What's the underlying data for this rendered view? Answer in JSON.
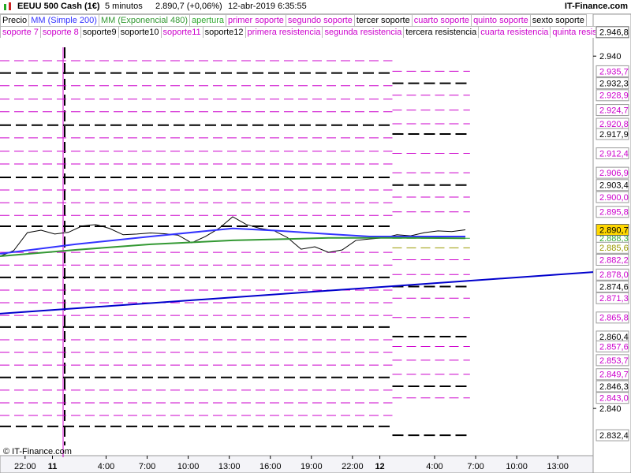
{
  "header": {
    "title": "EEUU 500 Cash (1€)",
    "interval": "5 minutos",
    "quote": "2.890,7 (+0,06%)",
    "datetime": "12-abr-2019 6:35:55",
    "brand": "IT-Finance.com"
  },
  "footer": {
    "copyright": "© IT-Finance.com"
  },
  "chart_data": {
    "type": "price-levels",
    "xlim": [
      0,
      520
    ],
    "xticks": [
      {
        "value": 22,
        "label": "22:00"
      },
      {
        "value": 46,
        "label": "11",
        "bold": true
      },
      {
        "value": 93,
        "label": "4:00"
      },
      {
        "value": 129,
        "label": "7:00"
      },
      {
        "value": 165,
        "label": "10:00"
      },
      {
        "value": 201,
        "label": "13:00"
      },
      {
        "value": 237,
        "label": "16:00"
      },
      {
        "value": 273,
        "label": "19:00"
      },
      {
        "value": 309,
        "label": "22:00"
      },
      {
        "value": 333,
        "label": "12",
        "bold": true
      },
      {
        "value": 381,
        "label": "4:00"
      },
      {
        "value": 417,
        "label": "7:00"
      },
      {
        "value": 453,
        "label": "10:00"
      },
      {
        "value": 489,
        "label": "13:00"
      }
    ],
    "ylim": [
      2826.6,
      2948.1
    ],
    "yticks": [
      {
        "value": 2940,
        "label": "2.940"
      },
      {
        "value": 2840,
        "label": "2.840"
      }
    ],
    "series": [
      {
        "name": "Precio",
        "color": "#000000",
        "x": [
          0,
          12,
          24,
          36,
          48,
          60,
          72,
          84,
          96,
          108,
          120,
          132,
          144,
          156,
          168,
          180,
          192,
          204,
          216,
          228,
          240,
          252,
          264,
          276,
          288,
          300,
          312,
          324,
          336,
          348,
          360,
          372,
          384,
          396,
          408
        ],
        "values": [
          2883.2,
          2884.8,
          2889.9,
          2890.6,
          2889.5,
          2890.0,
          2891.8,
          2892.2,
          2891.1,
          2889.3,
          2889.5,
          2889.8,
          2889.6,
          2889.2,
          2887.0,
          2888.8,
          2891.1,
          2894.4,
          2892.2,
          2891.1,
          2890.5,
          2888.5,
          2885.2,
          2885.9,
          2884.3,
          2885.0,
          2887.7,
          2888.1,
          2888.4,
          2889.3,
          2889.0,
          2889.9,
          2890.4,
          2890.2,
          2890.7
        ]
      },
      {
        "name": "MM (Simple 200)",
        "color": "#3333ff",
        "x": [
          0,
          66,
          132,
          204,
          240,
          288,
          324,
          360,
          408
        ],
        "values": [
          2883.9,
          2886.6,
          2888.8,
          2891.1,
          2890.5,
          2889.5,
          2888.8,
          2888.8,
          2888.8
        ]
      },
      {
        "name": "MM (Exponencial 480)",
        "color": "#339933",
        "x": [
          0,
          66,
          132,
          204,
          240,
          288,
          324,
          360,
          408
        ],
        "values": [
          2883.2,
          2885.0,
          2886.6,
          2887.7,
          2888.0,
          2888.4,
          2888.4,
          2888.4,
          2888.3
        ]
      }
    ],
    "legend_items": [
      {
        "name": "apertura",
        "color": "#33aa33"
      },
      {
        "name": "primer soporte",
        "color": "#cc00cc"
      },
      {
        "name": "segundo soporte",
        "color": "#cc00cc"
      },
      {
        "name": "tercer soporte",
        "color": "#000000"
      },
      {
        "name": "cuarto soporte",
        "color": "#cc00cc"
      },
      {
        "name": "quinto soporte",
        "color": "#cc00cc"
      },
      {
        "name": "sexto soporte",
        "color": "#000000"
      },
      {
        "name": "soporte 7",
        "color": "#cc00cc"
      },
      {
        "name": "soporte 8",
        "color": "#cc00cc"
      },
      {
        "name": "soporte9",
        "color": "#000000"
      },
      {
        "name": "soporte10",
        "color": "#000000"
      },
      {
        "name": "soporte11",
        "color": "#cc00cc"
      },
      {
        "name": "soporte12",
        "color": "#000000"
      },
      {
        "name": "primera resistencia",
        "color": "#cc00cc"
      },
      {
        "name": "segunda resistencia",
        "color": "#cc00cc"
      },
      {
        "name": "tercera resistencia",
        "color": "#000000"
      },
      {
        "name": "cuarta resistencia",
        "color": "#cc00cc"
      },
      {
        "name": "quinta resistencia",
        "color": "#cc00cc"
      }
    ],
    "previous_session": {
      "xrange": [
        0,
        344
      ],
      "major_levels": [
        2935.2,
        2920.4,
        2905.6,
        2891.7,
        2877.2,
        2863.1,
        2848.8,
        2834.9
      ],
      "minor_levels": [
        2938.7,
        2931.6,
        2927.8,
        2924.2,
        2916.8,
        2913.0,
        2909.4,
        2902.0,
        2898.4,
        2894.8,
        2884.3,
        2880.7,
        2873.6,
        2870.0,
        2866.4,
        2859.5,
        2855.9,
        2852.3,
        2845.2,
        2841.6,
        2838.0
      ]
    },
    "current_session_xrange": [
      344,
      412
    ],
    "levels": [
      {
        "value": 2935.7,
        "label": "2.935,7",
        "color": "#cc00cc"
      },
      {
        "value": 2932.3,
        "label": "2.932,3",
        "color": "#000000"
      },
      {
        "value": 2928.9,
        "label": "2.928,9",
        "color": "#cc00cc"
      },
      {
        "value": 2924.7,
        "label": "2.924,7",
        "color": "#cc00cc"
      },
      {
        "value": 2920.8,
        "label": "2.920,8",
        "color": "#cc00cc"
      },
      {
        "value": 2917.9,
        "label": "2.917,9",
        "color": "#000000"
      },
      {
        "value": 2912.4,
        "label": "2.912,4",
        "color": "#cc00cc"
      },
      {
        "value": 2906.9,
        "label": "2.906,9",
        "color": "#cc00cc"
      },
      {
        "value": 2903.4,
        "label": "2.903,4",
        "color": "#000000"
      },
      {
        "value": 2900.0,
        "label": "2.900,0",
        "color": "#cc00cc"
      },
      {
        "value": 2895.8,
        "label": "2.895,8",
        "color": "#cc00cc"
      },
      {
        "value": 2888.3,
        "label": "2.888,3",
        "color": "#33aa33"
      },
      {
        "value": 2885.6,
        "label": "2.885,6",
        "color": "#999900"
      },
      {
        "value": 2882.2,
        "label": "2.882,2",
        "color": "#cc00cc"
      },
      {
        "value": 2878.0,
        "label": "2.878,0",
        "color": "#cc00cc"
      },
      {
        "value": 2874.6,
        "label": "2.874,6",
        "color": "#000000"
      },
      {
        "value": 2871.3,
        "label": "2.871,3",
        "color": "#cc00cc"
      },
      {
        "value": 2865.8,
        "label": "2.865,8",
        "color": "#cc00cc"
      },
      {
        "value": 2860.4,
        "label": "2.860,4",
        "color": "#000000"
      },
      {
        "value": 2857.6,
        "label": "2.857,6",
        "color": "#cc00cc"
      },
      {
        "value": 2853.7,
        "label": "2.853,7",
        "color": "#cc00cc"
      },
      {
        "value": 2849.7,
        "label": "2.849,7",
        "color": "#cc00cc"
      },
      {
        "value": 2846.3,
        "label": "2.846,3",
        "color": "#000000"
      },
      {
        "value": 2843.0,
        "label": "2.843,0",
        "color": "#cc00cc"
      },
      {
        "value": 2832.4,
        "label": "2.832,4",
        "color": "#000000"
      }
    ],
    "marker_labels": [
      {
        "value": 2946.8,
        "label": "2.946,8",
        "color": "#000000",
        "background": "#ffffff"
      },
      {
        "value": 2890.7,
        "label": "2.890,7",
        "color": "#000000",
        "background": "#ffd700"
      }
    ],
    "trend_line": {
      "color": "#0000cc",
      "x": [
        0,
        520
      ],
      "values": [
        2866.9,
        2878.7
      ]
    }
  }
}
